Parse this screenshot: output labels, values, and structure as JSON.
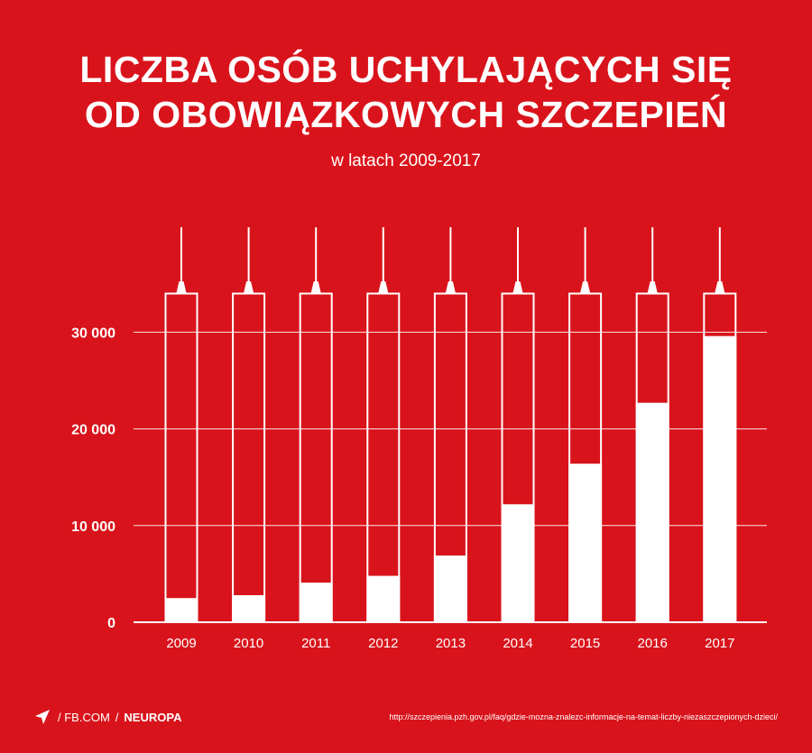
{
  "header": {
    "title_line1": "LICZBA OSÓB UCHYLAJĄCYCH SIĘ",
    "title_line2": "OD OBOWIĄZKOWYCH SZCZEPIEŃ",
    "subtitle": "w latach 2009-2017"
  },
  "chart_data": {
    "type": "bar",
    "title": "LICZBA OSÓB UCHYLAJĄCYCH SIĘ OD OBOWIĄZKOWYCH SZCZEPIEŃ",
    "subtitle": "w latach 2009-2017",
    "categories": [
      "2009",
      "2010",
      "2011",
      "2012",
      "2013",
      "2014",
      "2015",
      "2016",
      "2017"
    ],
    "values": [
      2500,
      2800,
      4100,
      4800,
      6900,
      12200,
      16400,
      22700,
      29600
    ],
    "ylim": [
      0,
      34000
    ],
    "yticks": [
      0,
      10000,
      20000,
      30000
    ],
    "ytick_labels": [
      "0",
      "10 000",
      "20 000",
      "30 000"
    ],
    "grid": true,
    "bar_style": "syringe",
    "colors": {
      "background": "#d9131b",
      "bar": "#ffffff"
    }
  },
  "footer": {
    "fb": "FB.COM",
    "brand": "NEUROPA",
    "source": "http://szczepienia.pzh.gov.pl/faq/gdzie-mozna-znalezc-informacje-na-temat-liczby-niezaszczepionych-dzieci/",
    "icon": "paper-plane-icon"
  }
}
